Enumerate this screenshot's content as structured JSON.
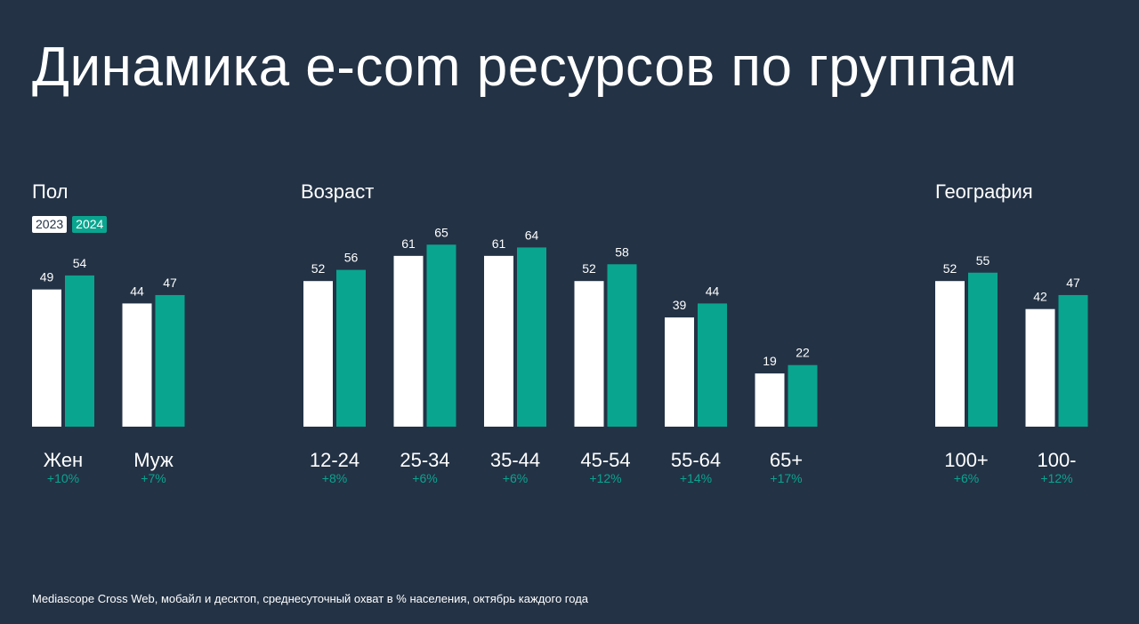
{
  "title": "Динамика e-com ресурсов по группам",
  "colors": {
    "background": "#233245",
    "series_2023": "#ffffff",
    "series_2024": "#0aa58f",
    "growth": "#0aa58f"
  },
  "legend": {
    "y2023": "2023",
    "y2024": "2024"
  },
  "footnote": "Mediascope Cross Web, мобайл и десктоп, среднесуточный охват в % населения, октябрь каждого года",
  "chart_data": {
    "type": "bar",
    "title": "Динамика e-com ресурсов по группам",
    "legend": {
      "placement": "top-left",
      "entries": [
        "2023",
        "2024"
      ]
    },
    "grid": false,
    "groups": [
      {
        "label": "Пол",
        "categories": [
          "Жен",
          "Муж"
        ],
        "growth": [
          "+10%",
          "+7%"
        ],
        "series": [
          {
            "name": "2023",
            "values": [
              49,
              44
            ]
          },
          {
            "name": "2024",
            "values": [
              54,
              47
            ]
          }
        ]
      },
      {
        "label": "Возраст",
        "categories": [
          "12-24",
          "25-34",
          "35-44",
          "45-54",
          "55-64",
          "65+"
        ],
        "growth": [
          "+8%",
          "+6%",
          "+6%",
          "+12%",
          "+14%",
          "+17%"
        ],
        "series": [
          {
            "name": "2023",
            "values": [
              52,
              61,
              61,
              52,
              39,
              19
            ]
          },
          {
            "name": "2024",
            "values": [
              56,
              65,
              64,
              58,
              44,
              22
            ]
          }
        ]
      },
      {
        "label": "География",
        "categories": [
          "100+",
          "100-"
        ],
        "growth": [
          "+6%",
          "+12%"
        ],
        "series": [
          {
            "name": "2023",
            "values": [
              52,
              42
            ]
          },
          {
            "name": "2024",
            "values": [
              55,
              47
            ]
          }
        ]
      }
    ]
  }
}
